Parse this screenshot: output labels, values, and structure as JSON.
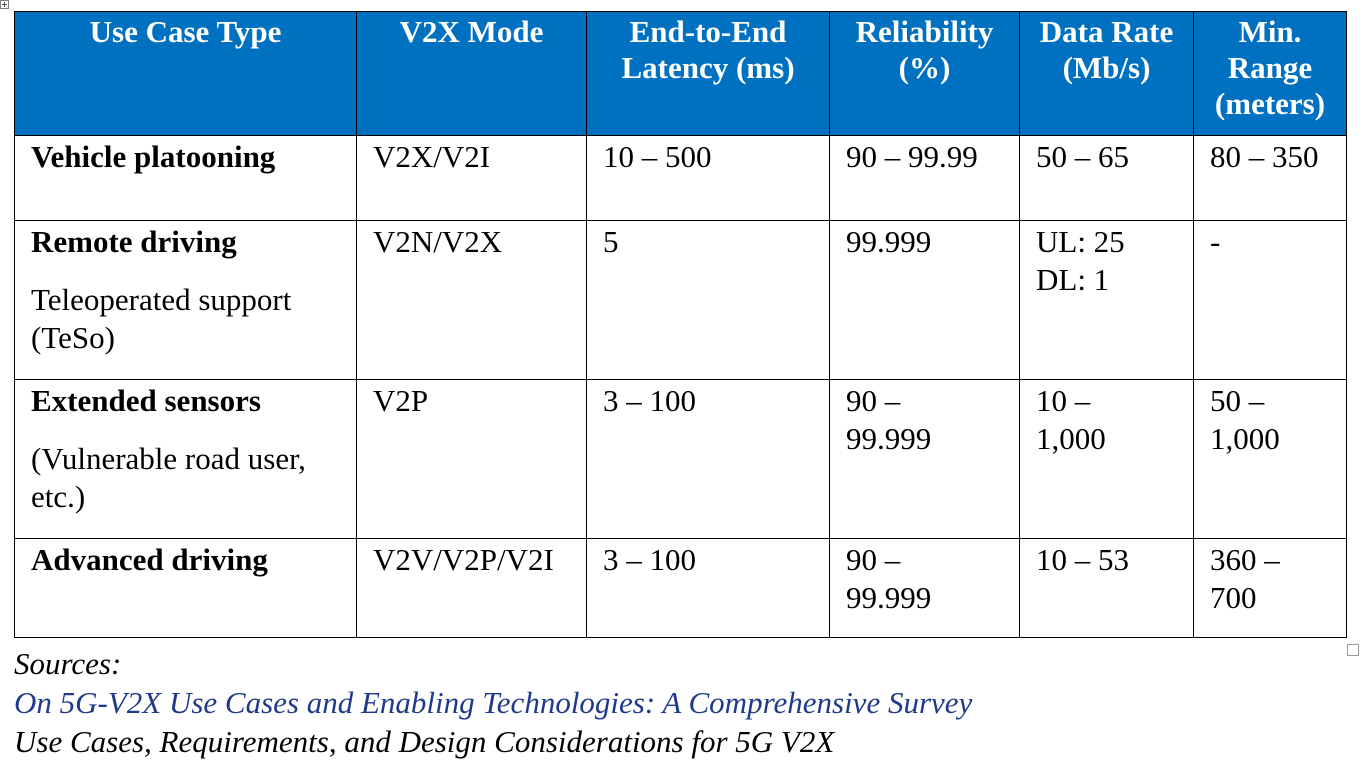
{
  "table": {
    "headers": [
      "Use Case Type",
      "V2X Mode",
      "End-to-End Latency (ms)",
      "Reliability (%)",
      "Data Rate (Mb/s)",
      "Min. Range (meters)"
    ],
    "rows": [
      {
        "title": "Vehicle platooning",
        "subtitle": "",
        "mode": "V2X/V2I",
        "latency": "10 – 500",
        "reliability": "90 – 99.99",
        "data_rate": [
          "50 – 65"
        ],
        "range": "80 – 350"
      },
      {
        "title": "Remote driving",
        "subtitle": "Teleoperated support (TeSo)",
        "mode": "V2N/V2X",
        "latency": "5",
        "reliability": "99.999",
        "data_rate": [
          "UL: 25",
          "DL: 1"
        ],
        "range": "-"
      },
      {
        "title": "Extended sensors",
        "subtitle": "(Vulnerable road user, etc.)",
        "mode": "V2P",
        "latency": "3 – 100",
        "reliability": "90 – 99.999",
        "data_rate": [
          "10 – 1,000"
        ],
        "range": "50 – 1,000"
      },
      {
        "title": "Advanced driving",
        "subtitle": "",
        "mode": "V2V/V2P/V2I",
        "latency": "3 – 100",
        "reliability": "90 – 99.999",
        "data_rate": [
          "10 – 53"
        ],
        "range": "360 – 700"
      }
    ]
  },
  "sources": {
    "label": "Sources:",
    "links": [
      "On 5G-V2X Use Cases and Enabling Technologies: A Comprehensive Survey",
      "Use Cases, Requirements, and Design Considerations for 5G V2X"
    ]
  },
  "colors": {
    "header_bg": "#0070c0",
    "header_text": "#ffffff",
    "link": "#1f3a8a"
  }
}
